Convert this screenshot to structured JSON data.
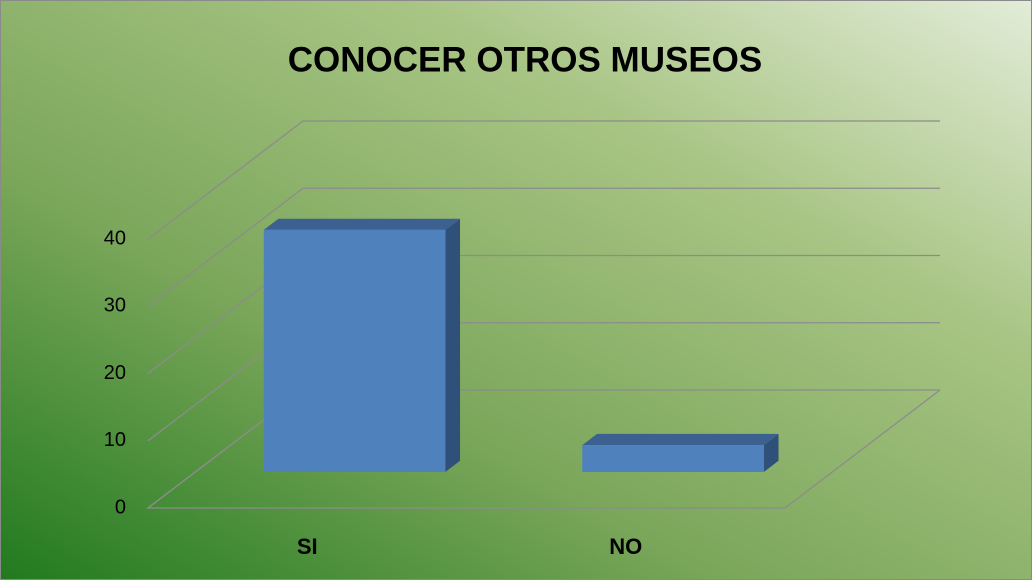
{
  "chart_data": {
    "type": "bar3d",
    "title": "CONOCER OTROS MUSEOS",
    "categories": [
      "SI",
      "NO"
    ],
    "values": [
      36,
      4
    ],
    "color": "#4f81bd",
    "ylim": [
      0,
      40
    ],
    "yticks": [
      0,
      10,
      20,
      30,
      40
    ],
    "grid": true
  }
}
